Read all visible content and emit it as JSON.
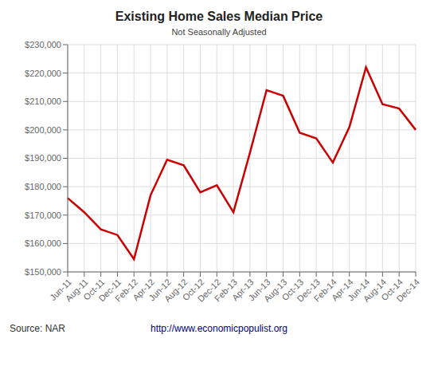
{
  "chart_data": {
    "type": "line",
    "title": "Existing Home Sales Median Price",
    "subtitle": "Not Seasonally Adjusted",
    "annotations": [
      "Source: NAR",
      "http://www.economicpopulist.org"
    ],
    "categories": [
      "Jun-11",
      "Aug-11",
      "Oct-11",
      "Dec-11",
      "Feb-12",
      "Apr-12",
      "Jun-12",
      "Aug-12",
      "Oct-12",
      "Dec-12",
      "Feb-13",
      "Apr-13",
      "Jun-13",
      "Aug-13",
      "Oct-13",
      "Dec-13",
      "Feb-14",
      "Apr-14",
      "Jun-14",
      "Aug-14",
      "Oct-14",
      "Dec-14"
    ],
    "values": [
      176000,
      171000,
      165000,
      163000,
      154500,
      177000,
      189500,
      187500,
      178000,
      180500,
      171000,
      192000,
      214000,
      212000,
      199000,
      197000,
      188500,
      201000,
      222000,
      209000,
      207500,
      200000
    ],
    "color": "#cc0000",
    "ylim": [
      150000,
      230000
    ],
    "yticks": [
      {
        "value": 150000,
        "label": "$150,000"
      },
      {
        "value": 160000,
        "label": "$160,000"
      },
      {
        "value": 170000,
        "label": "$170,000"
      },
      {
        "value": 180000,
        "label": "$180,000"
      },
      {
        "value": 190000,
        "label": "$190,000"
      },
      {
        "value": 200000,
        "label": "$200,000"
      },
      {
        "value": 210000,
        "label": "$210,000"
      },
      {
        "value": 220000,
        "label": "$220,000"
      },
      {
        "value": 230000,
        "label": "$230,000"
      }
    ],
    "grid": true
  }
}
